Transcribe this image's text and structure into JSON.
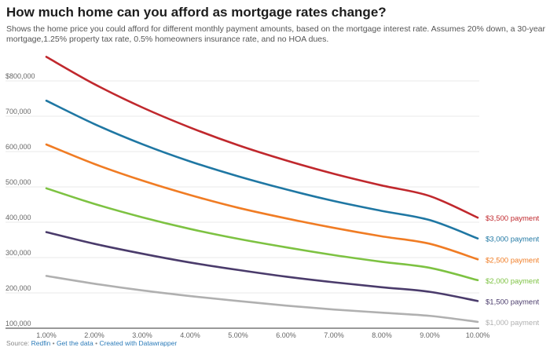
{
  "title": "How much home can you afford as mortgage rates change?",
  "subtitle": "Shows the home price you could afford for different monthly payment amounts, based on the mortgage interest rate. Assumes 20% down, a 30-year mortgage,1.25% property tax rate, 0.5% homeowners insurance rate, and no HOA dues.",
  "footer": {
    "source_label": "Source: ",
    "source": "Redfin",
    "sep1": " • ",
    "get_data": "Get the data",
    "sep2": " • ",
    "created_with": "Created with Datawrapper"
  },
  "chart_data": {
    "type": "line",
    "title": "How much home can you afford as mortgage rates change?",
    "xlabel": "",
    "ylabel": "",
    "x": [
      1,
      2,
      3,
      4,
      5,
      6,
      7,
      8,
      9,
      10
    ],
    "x_tick_labels": [
      "1.00%",
      "2.00%",
      "3.00%",
      "4.00%",
      "5.00%",
      "6.00%",
      "7.00%",
      "8.00%",
      "9.00%",
      "10.00%"
    ],
    "xlim": [
      1,
      10
    ],
    "ylim": [
      100000,
      800000
    ],
    "y_ticks": [
      100000,
      200000,
      300000,
      400000,
      500000,
      600000,
      700000,
      800000
    ],
    "y_tick_labels": [
      "100,000",
      "200,000",
      "300,000",
      "400,000",
      "500,000",
      "600,000",
      "700,000",
      "$800,000"
    ],
    "grid": true,
    "legend": "direct labels at right end of lines",
    "series": [
      {
        "name": "$3,500 payment",
        "color": "#c0282d",
        "values": [
          868000,
          791000,
          725000,
          668000,
          618000,
          575000,
          537000,
          504000,
          474000,
          413000
        ]
      },
      {
        "name": "$3,000 payment",
        "color": "#1f77a3",
        "values": [
          744000,
          678000,
          621000,
          572000,
          530000,
          493000,
          460000,
          432000,
          406000,
          354000
        ]
      },
      {
        "name": "$2,500 payment",
        "color": "#f07c24",
        "values": [
          620000,
          565000,
          518000,
          477000,
          441000,
          411000,
          384000,
          360000,
          339000,
          295000
        ]
      },
      {
        "name": "$2,000 payment",
        "color": "#7dc242",
        "values": [
          496000,
          452000,
          414000,
          381000,
          353000,
          329000,
          307000,
          288000,
          271000,
          236000
        ]
      },
      {
        "name": "$1,500 payment",
        "color": "#4a3b6b",
        "values": [
          372000,
          339000,
          311000,
          286000,
          265000,
          246000,
          230000,
          216000,
          203000,
          177000
        ]
      },
      {
        "name": "$1,000 payment",
        "color": "#b0b0b0",
        "values": [
          248000,
          226000,
          207000,
          191000,
          177000,
          164000,
          153000,
          144000,
          135000,
          118000
        ]
      }
    ]
  }
}
